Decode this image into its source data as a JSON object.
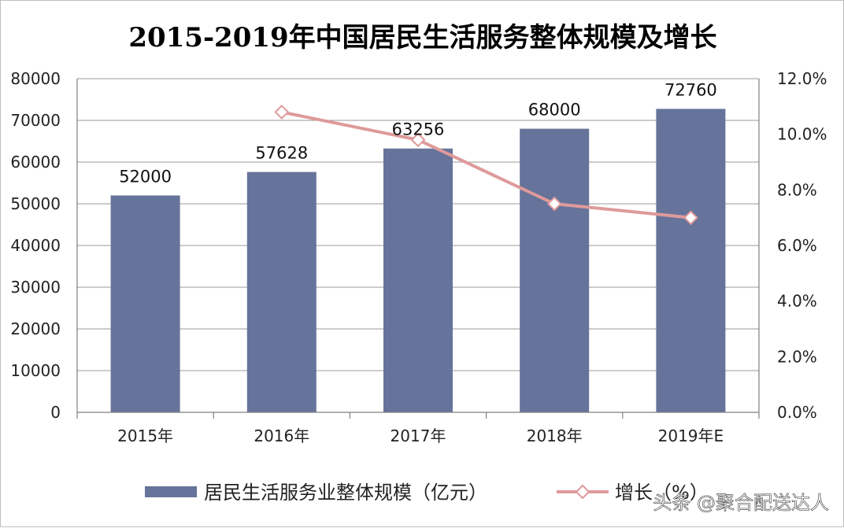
{
  "chart_data": {
    "type": "bar",
    "title": "2015-2019年中国居民生活服务整体规模及增长",
    "categories": [
      "2015年",
      "2016年",
      "2017年",
      "2018年",
      "2019年E"
    ],
    "series": [
      {
        "name": "居民生活服务业整体规模（亿元）",
        "type": "bar",
        "axis": "left",
        "color": "#66739a",
        "values": [
          52000,
          57628,
          63256,
          68000,
          72760
        ],
        "data_labels": [
          "52000",
          "57628",
          "63256",
          "68000",
          "72760"
        ]
      },
      {
        "name": "增长（%）",
        "type": "line",
        "axis": "right",
        "color": "#de9a9a",
        "marker": "diamond",
        "values": [
          null,
          10.8,
          9.8,
          7.5,
          7.0
        ]
      }
    ],
    "y_left": {
      "lim": [
        0,
        80000
      ],
      "ticks": [
        "0",
        "10000",
        "20000",
        "30000",
        "40000",
        "50000",
        "60000",
        "70000",
        "80000"
      ]
    },
    "y_right": {
      "lim": [
        0,
        12
      ],
      "ticks": [
        "0.0%",
        "2.0%",
        "4.0%",
        "6.0%",
        "8.0%",
        "10.0%",
        "12.0%"
      ]
    },
    "grid": true,
    "legend_position": "bottom"
  },
  "watermark": "头条 @聚合配送达人"
}
